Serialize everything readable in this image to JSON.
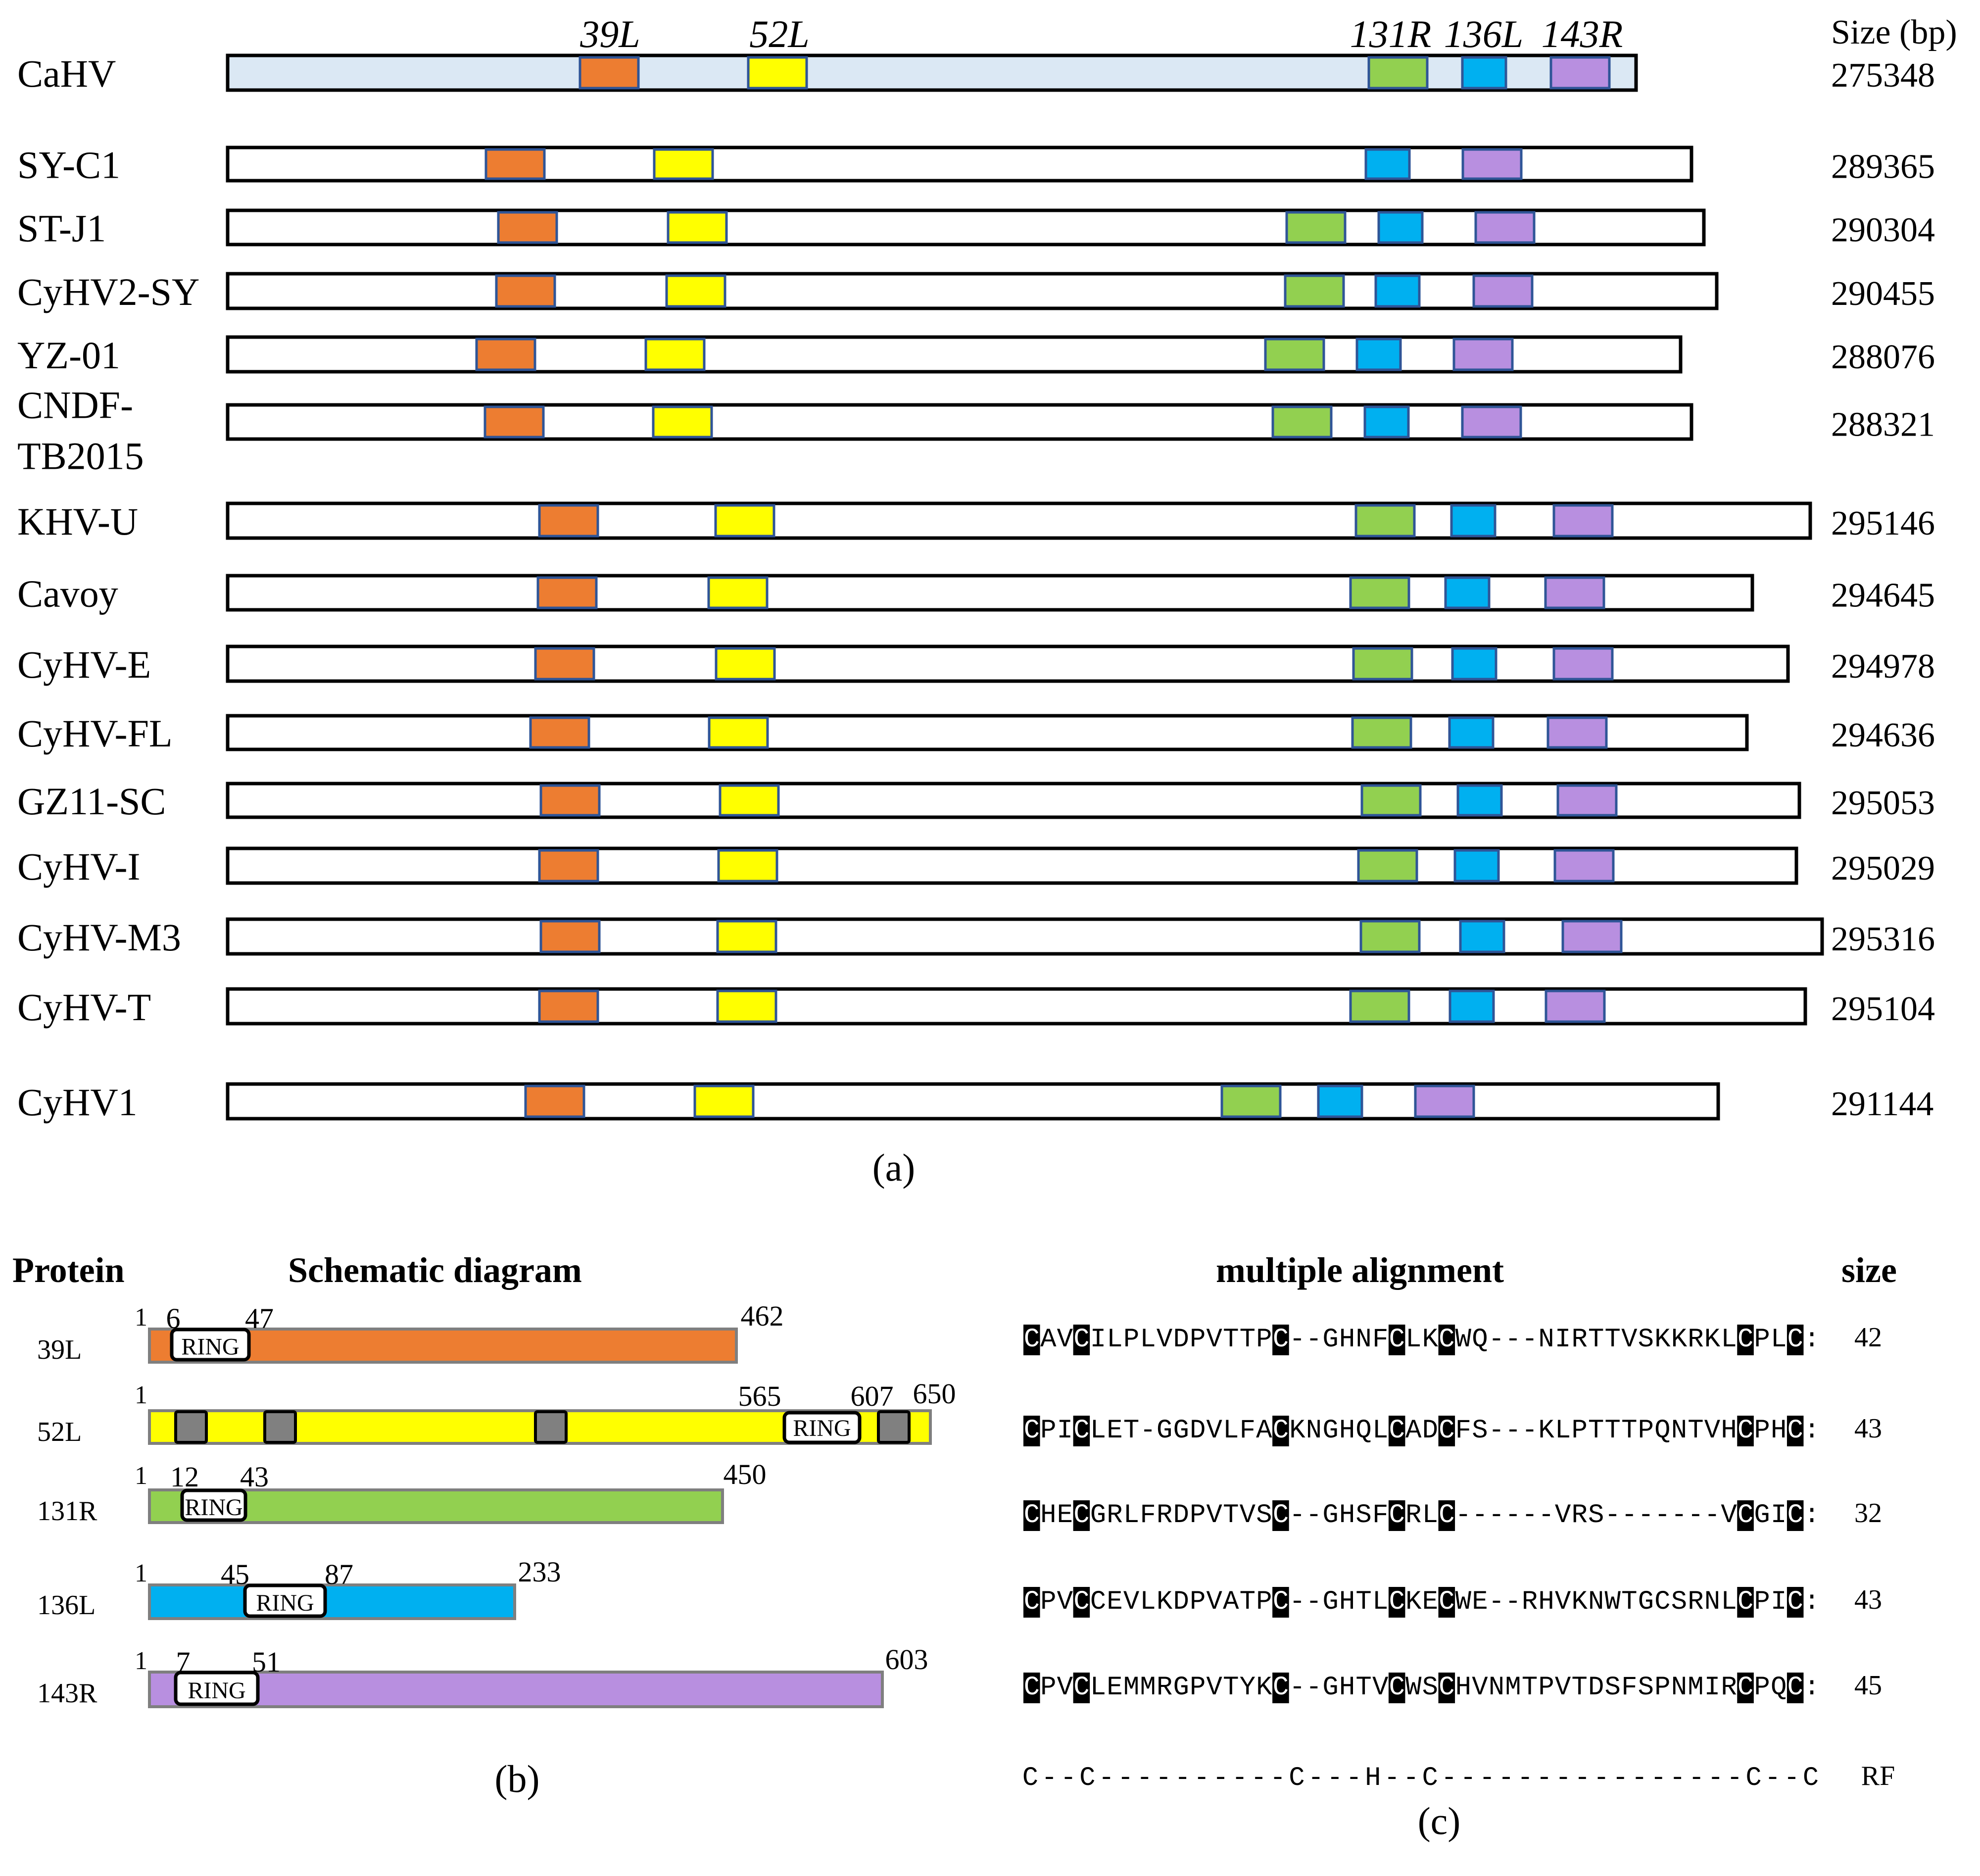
{
  "colors": {
    "cahv_fill": "#dbe8f4",
    "orange": "#ed7d31",
    "yellow": "#ffff00",
    "green": "#92d050",
    "blue": "#00b0f0",
    "purple": "#b88fe0",
    "grey_box": "#808080",
    "highlight": "#000000",
    "bar_outline": "#000000",
    "box_outline": "#2f5597",
    "protein_outline": "#7f7f7f"
  },
  "panel_a": {
    "size_header": "Size (bp)",
    "gene_labels": [
      "39L",
      "52L",
      "131R",
      "136L",
      "143R"
    ],
    "caption": "(a)",
    "genomes": [
      {
        "name": "CaHV",
        "size": "275348"
      },
      {
        "name": "SY-C1",
        "size": "289365"
      },
      {
        "name": "ST-J1",
        "size": "290304"
      },
      {
        "name": "CyHV2-SY",
        "size": "290455"
      },
      {
        "name": "YZ-01",
        "size": "288076"
      },
      {
        "name": "CNDF-",
        "name2": "TB2015",
        "size": "288321"
      },
      {
        "name": "KHV-U",
        "size": "295146"
      },
      {
        "name": "Cavoy",
        "size": "294645"
      },
      {
        "name": "CyHV-E",
        "size": "294978"
      },
      {
        "name": "CyHV-FL",
        "size": "294636"
      },
      {
        "name": "GZ11-SC",
        "size": "295053"
      },
      {
        "name": "CyHV-I",
        "size": "295029"
      },
      {
        "name": "CyHV-M3",
        "size": "295316"
      },
      {
        "name": "CyHV-T",
        "size": "295104"
      },
      {
        "name": "CyHV1",
        "size": "291144"
      }
    ]
  },
  "panel_b": {
    "header_protein": "Protein",
    "header_schematic": "Schematic diagram",
    "caption": "(b)",
    "ring_label": "RING",
    "proteins": [
      {
        "name": "39L",
        "start": "1",
        "ring_start": "6",
        "ring_end": "47",
        "length": "462"
      },
      {
        "name": "52L",
        "start": "1",
        "ring_start": "565",
        "ring_end": "607",
        "length": "650"
      },
      {
        "name": "131R",
        "start": "1",
        "ring_start": "12",
        "ring_end": "43",
        "length": "450"
      },
      {
        "name": "136L",
        "start": "1",
        "ring_start": "45",
        "ring_end": "87",
        "length": "233"
      },
      {
        "name": "143R",
        "start": "1",
        "ring_start": "7",
        "ring_end": "51",
        "length": "603"
      }
    ]
  },
  "panel_c": {
    "header_alignment": "multiple alignment",
    "header_size": "size",
    "caption": "(c)",
    "sequences": [
      {
        "seq": "CAVCILPLVDPVTTPC--GHNFCLKCWQ---NIRTTVSKKRKLCPLC:",
        "size": "42"
      },
      {
        "seq": "CPICLET-GGDVLFACKNGHQLCADCFS---KLPTTTPQNTVHCPHC:",
        "size": "43"
      },
      {
        "seq": "CHECGRLFRDPVTVSC--GHSFCRLC------VRS-------VCGIC:",
        "size": "32"
      },
      {
        "seq": "CPVCCEVLKDPVATPC--GHTLCKECWE--RHVKNWTGCSRNLCPIC:",
        "size": "43"
      },
      {
        "seq": "CPVCLEMMRGPVTYKC--GHTVCWSCHVNMTPVTDSFSPNMIRCPQC:",
        "size": "45"
      }
    ],
    "consensus": "C--C----------C---H--C----------------C--C",
    "consensus_size": "RF"
  }
}
